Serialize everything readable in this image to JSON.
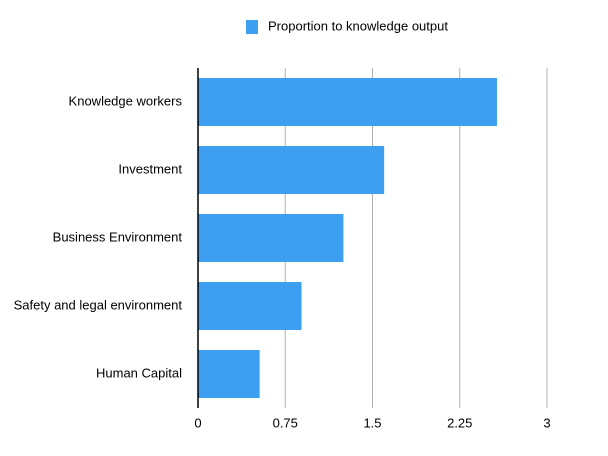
{
  "chart_data": {
    "type": "bar",
    "orientation": "horizontal",
    "categories": [
      "Knowledge workers",
      "Investment",
      "Business Environment",
      "Safety and legal environment",
      "Human Capital"
    ],
    "series": [
      {
        "name": "Proportion to knowledge output",
        "color": "#3d9ff0",
        "values": [
          2.57,
          1.6,
          1.25,
          0.89,
          0.53
        ]
      }
    ],
    "xlim": [
      0,
      3
    ],
    "xticks": [
      0,
      0.75,
      1.5,
      2.25,
      3
    ],
    "grid": true,
    "legend": "top"
  }
}
